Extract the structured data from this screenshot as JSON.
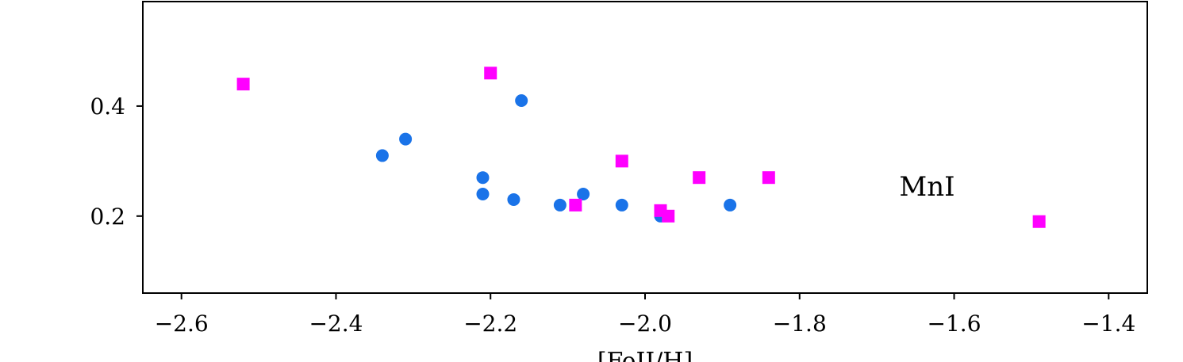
{
  "chart_data": {
    "type": "scatter",
    "xlabel": "[FeII/H]",
    "ylabel": "",
    "xlim": [
      -2.65,
      -1.35
    ],
    "ylim": [
      0.06,
      0.59
    ],
    "x_ticks": [
      -2.6,
      -2.4,
      -2.2,
      -2.0,
      -1.8,
      -1.6,
      -1.4
    ],
    "x_tick_labels": [
      "−2.6",
      "−2.4",
      "−2.2",
      "−2.0",
      "−1.8",
      "−1.6",
      "−1.4"
    ],
    "y_ticks": [
      0.2,
      0.4
    ],
    "y_tick_labels": [
      "0.2",
      "0.4"
    ],
    "grid": false,
    "annotations": [
      {
        "text": "MnI",
        "x": -1.635,
        "y": 0.25
      }
    ],
    "series": [
      {
        "marker": "circle",
        "color": "#1a73e8",
        "points": [
          {
            "x": -2.34,
            "y": 0.31
          },
          {
            "x": -2.31,
            "y": 0.34
          },
          {
            "x": -2.21,
            "y": 0.27
          },
          {
            "x": -2.21,
            "y": 0.24
          },
          {
            "x": -2.17,
            "y": 0.23
          },
          {
            "x": -2.16,
            "y": 0.41
          },
          {
            "x": -2.11,
            "y": 0.22
          },
          {
            "x": -2.08,
            "y": 0.24
          },
          {
            "x": -2.03,
            "y": 0.22
          },
          {
            "x": -1.98,
            "y": 0.2
          },
          {
            "x": -1.89,
            "y": 0.22
          }
        ]
      },
      {
        "marker": "square",
        "color": "#ff00ff",
        "points": [
          {
            "x": -2.52,
            "y": 0.44
          },
          {
            "x": -2.2,
            "y": 0.46
          },
          {
            "x": -2.09,
            "y": 0.22
          },
          {
            "x": -2.03,
            "y": 0.3
          },
          {
            "x": -1.98,
            "y": 0.21
          },
          {
            "x": -1.97,
            "y": 0.2
          },
          {
            "x": -1.93,
            "y": 0.27
          },
          {
            "x": -1.84,
            "y": 0.27
          },
          {
            "x": -1.49,
            "y": 0.19
          }
        ]
      }
    ]
  }
}
